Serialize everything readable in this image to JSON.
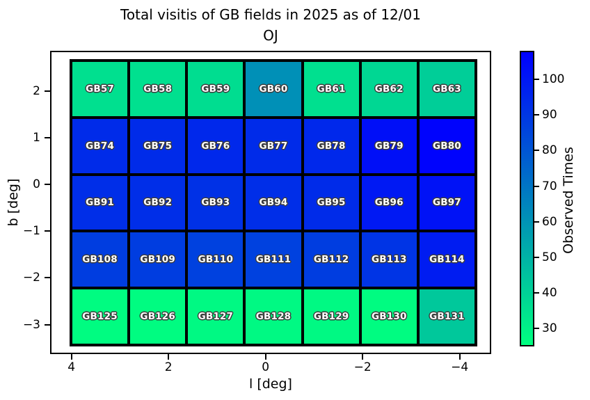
{
  "chart_data": {
    "type": "heatmap",
    "title": "Total visitis of GB fields in 2025 as of 12/01",
    "subtitle": "OJ",
    "xlabel": "l [deg]",
    "ylabel": "b [deg]",
    "colorbar_label": "Observed Times",
    "colormap": "winter_r",
    "color_low": "#00ff80",
    "color_high": "#0000ff",
    "vmin": 25,
    "vmax": 108,
    "xlim": [
      4.44,
      -4.65
    ],
    "ylim": [
      2.86,
      -3.63
    ],
    "grid_extent": {
      "l": [
        4.04,
        -4.36
      ],
      "b": [
        2.68,
        -3.46
      ]
    },
    "x_ticks": [
      {
        "value": 4,
        "label": "4"
      },
      {
        "value": 2,
        "label": "2"
      },
      {
        "value": 0,
        "label": "0"
      },
      {
        "value": -2,
        "label": "−2"
      },
      {
        "value": -4,
        "label": "−4"
      }
    ],
    "y_ticks": [
      {
        "value": 2,
        "label": "2"
      },
      {
        "value": 1,
        "label": "1"
      },
      {
        "value": 0,
        "label": "0"
      },
      {
        "value": -1,
        "label": "−1"
      },
      {
        "value": -2,
        "label": "−2"
      },
      {
        "value": -3,
        "label": "−3"
      }
    ],
    "colorbar_ticks": [
      {
        "value": 30,
        "label": "30"
      },
      {
        "value": 40,
        "label": "40"
      },
      {
        "value": 50,
        "label": "50"
      },
      {
        "value": 60,
        "label": "60"
      },
      {
        "value": 70,
        "label": "70"
      },
      {
        "value": 80,
        "label": "80"
      },
      {
        "value": 90,
        "label": "90"
      },
      {
        "value": 100,
        "label": "100"
      }
    ],
    "rows": [
      {
        "cells": [
          {
            "label": "GB57",
            "value": 35
          },
          {
            "label": "GB58",
            "value": 35
          },
          {
            "label": "GB59",
            "value": 36
          },
          {
            "label": "GB60",
            "value": 61
          },
          {
            "label": "GB61",
            "value": 35
          },
          {
            "label": "GB62",
            "value": 38
          },
          {
            "label": "GB63",
            "value": 41
          }
        ]
      },
      {
        "cells": [
          {
            "label": "GB74",
            "value": 94
          },
          {
            "label": "GB75",
            "value": 94
          },
          {
            "label": "GB76",
            "value": 95
          },
          {
            "label": "GB77",
            "value": 94
          },
          {
            "label": "GB78",
            "value": 95
          },
          {
            "label": "GB79",
            "value": 103
          },
          {
            "label": "GB80",
            "value": 107
          }
        ]
      },
      {
        "cells": [
          {
            "label": "GB91",
            "value": 93
          },
          {
            "label": "GB92",
            "value": 93
          },
          {
            "label": "GB93",
            "value": 92
          },
          {
            "label": "GB94",
            "value": 93
          },
          {
            "label": "GB95",
            "value": 94
          },
          {
            "label": "GB96",
            "value": 100
          },
          {
            "label": "GB97",
            "value": 102
          }
        ]
      },
      {
        "cells": [
          {
            "label": "GB108",
            "value": 88
          },
          {
            "label": "GB109",
            "value": 88
          },
          {
            "label": "GB110",
            "value": 87
          },
          {
            "label": "GB111",
            "value": 87
          },
          {
            "label": "GB112",
            "value": 88
          },
          {
            "label": "GB113",
            "value": 91
          },
          {
            "label": "GB114",
            "value": 99
          }
        ]
      },
      {
        "cells": [
          {
            "label": "GB125",
            "value": 26
          },
          {
            "label": "GB126",
            "value": 26
          },
          {
            "label": "GB127",
            "value": 27
          },
          {
            "label": "GB128",
            "value": 27
          },
          {
            "label": "GB129",
            "value": 27
          },
          {
            "label": "GB130",
            "value": 26
          },
          {
            "label": "GB131",
            "value": 43
          }
        ]
      }
    ]
  }
}
